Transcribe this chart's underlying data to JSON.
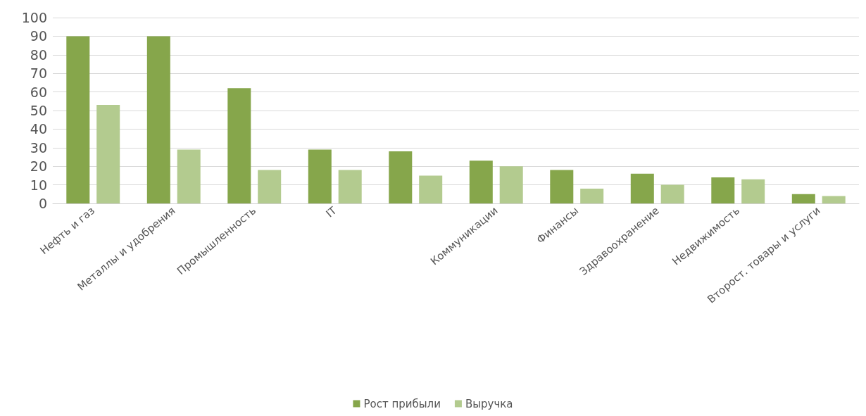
{
  "chart_data": {
    "type": "bar",
    "categories": [
      "Нефть и газ",
      "Металлы и удобрения",
      "Промышленность",
      "IT",
      null,
      "Коммуникации",
      "Финансы",
      "Здравоохранение",
      "Недвижимость",
      "Второст. товары и услуги"
    ],
    "series": [
      {
        "name": "Рост прибыли",
        "color": "#86a64b",
        "values": [
          90,
          90,
          62,
          29,
          28,
          23,
          18,
          16,
          14,
          5
        ]
      },
      {
        "name": "Выручка",
        "color": "#b3cb8f",
        "values": [
          53,
          29,
          18,
          18,
          15,
          20,
          8,
          10,
          13,
          4
        ]
      }
    ],
    "ylim": [
      0,
      100
    ],
    "yticks": [
      0,
      10,
      20,
      30,
      40,
      50,
      60,
      70,
      80,
      90,
      100
    ],
    "grid": "y",
    "legend": "bottom"
  }
}
